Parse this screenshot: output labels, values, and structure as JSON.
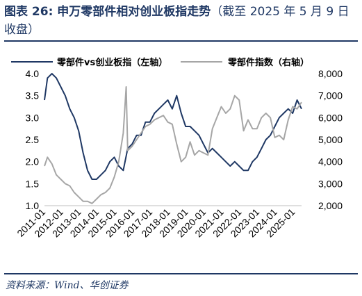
{
  "header": {
    "title_main": "图表 26:  申万零部件相对创业板指走势",
    "title_note": "（截至 2025 年 5 月 9 日收盘）"
  },
  "footer": {
    "source": "资料来源：Wind、华创证券"
  },
  "colors": {
    "left_series": "#1f3864",
    "right_series": "#a6a6a6",
    "rule": "#1f3864"
  },
  "chart_data": {
    "type": "line",
    "title": "申万零部件相对创业板指走势",
    "x_tick_labels": [
      "2011-01",
      "2012-01",
      "2013-01",
      "2014-01",
      "2015-01",
      "2016-01",
      "2017-01",
      "2018-01",
      "2019-01",
      "2020-01",
      "2021-01",
      "2022-01",
      "2023-01",
      "2024-01",
      "2025-01"
    ],
    "left_axis": {
      "ticks": [
        "1.0",
        "1.5",
        "2.0",
        "2.5",
        "3.0",
        "3.5",
        "4.0"
      ],
      "ylim": [
        1.0,
        4.0
      ]
    },
    "right_axis": {
      "ticks": [
        "2,000",
        "3,000",
        "4,000",
        "5,000",
        "6,000",
        "7,000",
        "8,000"
      ],
      "ylim": [
        2000,
        8000
      ]
    },
    "legend_position": "top",
    "series": [
      {
        "name": "零部件vs创业板指（左轴）",
        "axis": "left",
        "x": [
          "2010-12",
          "2011-02",
          "2011-05",
          "2011-08",
          "2011-11",
          "2012-02",
          "2012-05",
          "2012-08",
          "2012-11",
          "2013-02",
          "2013-05",
          "2013-08",
          "2013-11",
          "2014-02",
          "2014-05",
          "2014-08",
          "2014-11",
          "2015-02",
          "2015-05",
          "2015-08",
          "2015-11",
          "2016-02",
          "2016-05",
          "2016-08",
          "2016-11",
          "2017-02",
          "2017-05",
          "2017-08",
          "2017-11",
          "2018-02",
          "2018-05",
          "2018-08",
          "2018-11",
          "2019-02",
          "2019-05",
          "2019-08",
          "2019-11",
          "2020-02",
          "2020-05",
          "2020-08",
          "2020-11",
          "2021-02",
          "2021-05",
          "2021-08",
          "2021-11",
          "2022-02",
          "2022-05",
          "2022-08",
          "2022-11",
          "2023-02",
          "2023-05",
          "2023-08",
          "2023-11",
          "2024-02",
          "2024-05",
          "2024-08",
          "2024-11",
          "2025-02",
          "2025-05"
        ],
        "values": [
          3.4,
          3.9,
          4.0,
          3.9,
          3.7,
          3.5,
          3.2,
          3.0,
          2.7,
          2.2,
          1.8,
          1.6,
          1.6,
          1.7,
          1.8,
          2.0,
          2.1,
          1.9,
          1.8,
          2.3,
          2.4,
          2.6,
          2.6,
          2.9,
          2.9,
          3.1,
          3.2,
          3.3,
          3.4,
          3.2,
          3.5,
          3.1,
          2.8,
          2.8,
          2.7,
          2.6,
          2.4,
          2.2,
          2.3,
          2.2,
          2.1,
          2.0,
          1.9,
          2.0,
          1.9,
          1.8,
          1.8,
          2.0,
          2.1,
          2.3,
          2.5,
          2.6,
          2.8,
          3.0,
          3.1,
          3.2,
          3.1,
          3.4,
          3.2
        ]
      },
      {
        "name": "零部件指数（右轴）",
        "axis": "right",
        "x": [
          "2010-12",
          "2011-02",
          "2011-05",
          "2011-08",
          "2011-11",
          "2012-02",
          "2012-05",
          "2012-08",
          "2012-11",
          "2013-02",
          "2013-05",
          "2013-08",
          "2013-11",
          "2014-02",
          "2014-05",
          "2014-08",
          "2014-11",
          "2015-02",
          "2015-05",
          "2015-07",
          "2015-08",
          "2015-11",
          "2016-02",
          "2016-05",
          "2016-08",
          "2016-11",
          "2017-02",
          "2017-05",
          "2017-08",
          "2017-11",
          "2018-02",
          "2018-05",
          "2018-08",
          "2018-11",
          "2019-02",
          "2019-05",
          "2019-08",
          "2019-11",
          "2020-02",
          "2020-05",
          "2020-08",
          "2020-11",
          "2021-02",
          "2021-05",
          "2021-08",
          "2021-11",
          "2022-02",
          "2022-05",
          "2022-08",
          "2022-11",
          "2023-02",
          "2023-05",
          "2023-08",
          "2023-11",
          "2024-02",
          "2024-05",
          "2024-08",
          "2024-11",
          "2025-02",
          "2025-05"
        ],
        "values": [
          3800,
          4200,
          3900,
          3400,
          3200,
          3000,
          2900,
          2600,
          2400,
          2200,
          2200,
          2100,
          2300,
          2500,
          2600,
          2800,
          3300,
          4000,
          5300,
          7400,
          4500,
          4700,
          5000,
          5300,
          5600,
          5700,
          5900,
          6000,
          6100,
          5800,
          5700,
          4800,
          4000,
          4200,
          4900,
          4300,
          4500,
          4400,
          4300,
          5500,
          6000,
          6500,
          6200,
          6400,
          7000,
          6800,
          5400,
          5900,
          5500,
          5500,
          6000,
          6200,
          6000,
          5100,
          5200,
          5000,
          5900,
          6500,
          6400,
          6700
        ]
      }
    ]
  }
}
